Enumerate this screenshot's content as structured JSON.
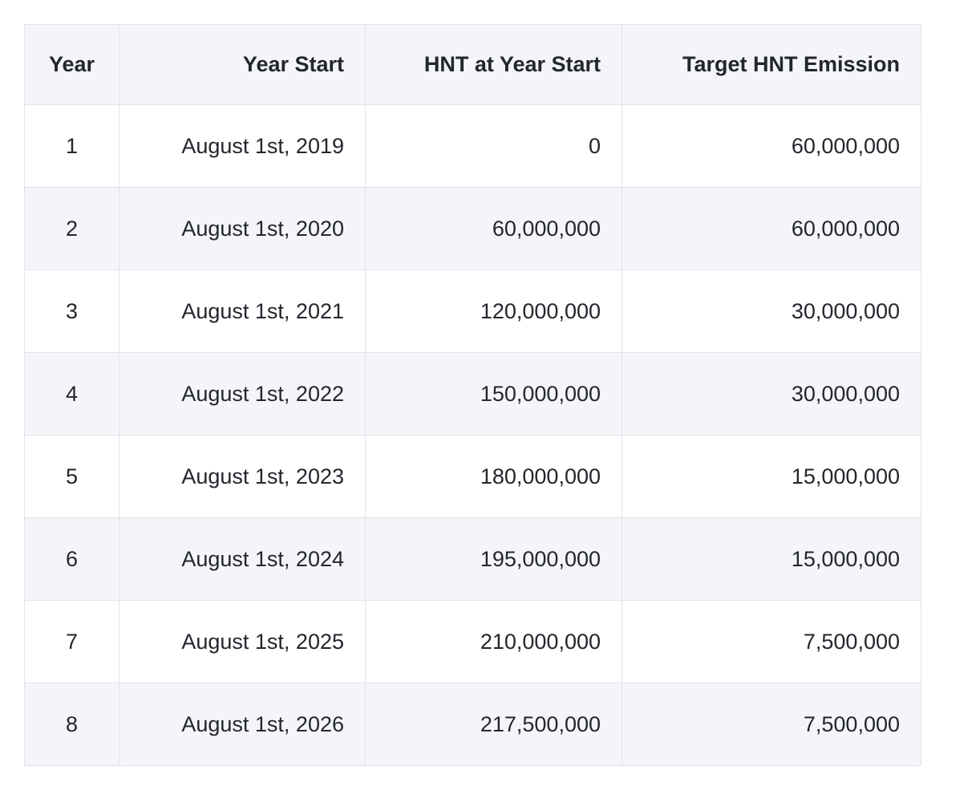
{
  "style": {
    "header_bg": "#f4f5f9",
    "stripe_bg": "#f4f5f9",
    "border_color": "#e2e4ea",
    "text_color": "#23262d",
    "page_bg": "#ffffff"
  },
  "table": {
    "columns": {
      "year": "Year",
      "year_start": "Year Start",
      "hnt_at_year_start": "HNT at Year Start",
      "target_hnt_emission": "Target HNT Emission"
    },
    "rows": [
      {
        "year": "1",
        "year_start": "August 1st, 2019",
        "hnt_at_year_start": "0",
        "target_hnt_emission": "60,000,000"
      },
      {
        "year": "2",
        "year_start": "August 1st, 2020",
        "hnt_at_year_start": "60,000,000",
        "target_hnt_emission": "60,000,000"
      },
      {
        "year": "3",
        "year_start": "August 1st, 2021",
        "hnt_at_year_start": "120,000,000",
        "target_hnt_emission": "30,000,000"
      },
      {
        "year": "4",
        "year_start": "August 1st, 2022",
        "hnt_at_year_start": "150,000,000",
        "target_hnt_emission": "30,000,000"
      },
      {
        "year": "5",
        "year_start": "August 1st, 2023",
        "hnt_at_year_start": "180,000,000",
        "target_hnt_emission": "15,000,000"
      },
      {
        "year": "6",
        "year_start": "August 1st, 2024",
        "hnt_at_year_start": "195,000,000",
        "target_hnt_emission": "15,000,000"
      },
      {
        "year": "7",
        "year_start": "August 1st, 2025",
        "hnt_at_year_start": "210,000,000",
        "target_hnt_emission": "7,500,000"
      },
      {
        "year": "8",
        "year_start": "August 1st, 2026",
        "hnt_at_year_start": "217,500,000",
        "target_hnt_emission": "7,500,000"
      }
    ]
  }
}
